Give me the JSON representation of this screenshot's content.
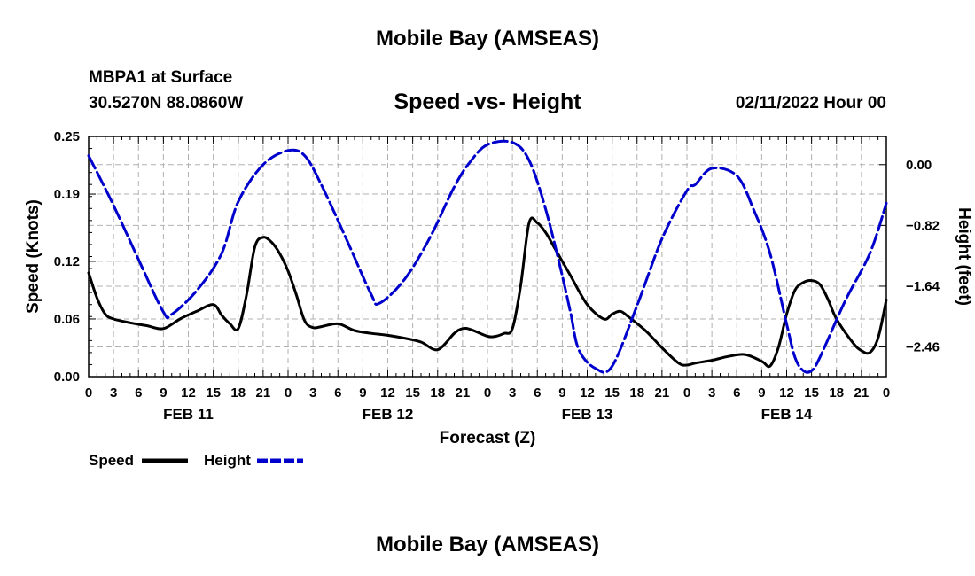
{
  "main_title": "Mobile Bay (AMSEAS)",
  "station_line1": "MBPA1 at Surface",
  "station_line2": "30.5270N  88.0860W",
  "chart_title": "Speed -vs- Height",
  "datetime": "02/11/2022 Hour 00",
  "repeat_title": "Mobile Bay (AMSEAS)",
  "legend": {
    "speed": "Speed",
    "height": "Height"
  },
  "colors": {
    "speed": "#000000",
    "height": "#0000cc",
    "grid": "#b0b0b0"
  },
  "chart_data": {
    "type": "line",
    "xlabel": "Forecast (Z)",
    "ylabel": "Speed (Knots)",
    "y2label": "Height (feet)",
    "xlim": [
      0,
      96
    ],
    "ylim": [
      0,
      0.25
    ],
    "y2lim": [
      -2.86,
      0.38
    ],
    "x_ticks": [
      0,
      3,
      6,
      9,
      12,
      15,
      18,
      21,
      24,
      27,
      30,
      33,
      36,
      39,
      42,
      45,
      48,
      51,
      54,
      57,
      60,
      63,
      66,
      69,
      72,
      75,
      78,
      81,
      84,
      87,
      90,
      93,
      96
    ],
    "x_tick_labels": [
      "0",
      "3",
      "6",
      "9",
      "12",
      "15",
      "18",
      "21",
      "0",
      "3",
      "6",
      "9",
      "12",
      "15",
      "18",
      "21",
      "0",
      "3",
      "6",
      "9",
      "12",
      "15",
      "18",
      "21",
      "0",
      "3",
      "6",
      "9",
      "12",
      "15",
      "18",
      "21",
      "0"
    ],
    "day_labels": [
      {
        "x": 12,
        "label": "FEB 11"
      },
      {
        "x": 36,
        "label": "FEB 12"
      },
      {
        "x": 60,
        "label": "FEB 13"
      },
      {
        "x": 84,
        "label": "FEB 14"
      }
    ],
    "y_ticks": [
      0.0,
      0.06,
      0.12,
      0.19,
      0.25
    ],
    "y_tick_labels": [
      "0.00",
      "0.06",
      "0.12",
      "0.19",
      "0.25"
    ],
    "y2_ticks": [
      0.0,
      -0.82,
      -1.64,
      -2.46
    ],
    "y2_tick_labels": [
      "0.00",
      "−0.82",
      "−1.64",
      "−2.46"
    ],
    "grid": true,
    "series": [
      {
        "name": "Speed",
        "axis": "left",
        "style": "solid",
        "x": [
          0,
          1,
          2,
          3,
          5,
          7,
          9,
          11,
          13,
          15,
          16,
          17,
          18,
          19,
          20,
          21,
          22,
          23,
          24,
          25,
          26,
          27,
          28,
          30,
          32,
          34,
          36,
          38,
          40,
          42,
          44,
          45,
          46,
          48,
          49,
          50,
          51,
          52,
          53,
          54,
          55,
          56,
          57,
          58,
          60,
          62,
          63,
          64,
          65,
          67,
          69,
          71,
          72,
          73,
          75,
          77,
          79,
          81,
          82,
          83,
          84,
          85,
          86,
          87,
          88,
          89,
          90,
          92,
          93,
          94,
          95,
          96
        ],
        "values": [
          0.108,
          0.082,
          0.065,
          0.06,
          0.056,
          0.053,
          0.05,
          0.06,
          0.068,
          0.075,
          0.064,
          0.055,
          0.05,
          0.085,
          0.135,
          0.145,
          0.14,
          0.128,
          0.11,
          0.085,
          0.058,
          0.051,
          0.052,
          0.055,
          0.048,
          0.045,
          0.043,
          0.04,
          0.036,
          0.028,
          0.045,
          0.05,
          0.049,
          0.042,
          0.042,
          0.045,
          0.05,
          0.095,
          0.16,
          0.16,
          0.15,
          0.135,
          0.12,
          0.105,
          0.075,
          0.06,
          0.065,
          0.068,
          0.062,
          0.048,
          0.03,
          0.014,
          0.012,
          0.014,
          0.017,
          0.021,
          0.023,
          0.016,
          0.011,
          0.03,
          0.065,
          0.09,
          0.098,
          0.1,
          0.096,
          0.08,
          0.06,
          0.035,
          0.027,
          0.025,
          0.04,
          0.08
        ]
      },
      {
        "name": "Height",
        "axis": "right",
        "style": "dashed",
        "x": [
          0,
          3,
          6,
          9,
          10,
          13,
          16,
          18,
          21,
          24,
          26,
          28,
          31,
          34,
          35,
          38,
          41,
          44,
          46,
          48,
          51,
          53,
          55,
          57,
          58,
          59,
          61,
          63,
          66,
          69,
          72,
          73,
          75,
          78,
          80,
          82,
          84,
          85,
          86,
          87,
          88,
          91,
          94,
          96
        ],
        "values": [
          0.12,
          -0.55,
          -1.28,
          -1.99,
          -2.02,
          -1.7,
          -1.2,
          -0.5,
          0.0,
          0.19,
          0.12,
          -0.27,
          -1.0,
          -1.75,
          -1.87,
          -1.55,
          -1.0,
          -0.3,
          0.05,
          0.27,
          0.3,
          0.06,
          -0.6,
          -1.5,
          -2.0,
          -2.5,
          -2.75,
          -2.72,
          -1.9,
          -1.0,
          -0.35,
          -0.27,
          -0.05,
          -0.15,
          -0.6,
          -1.2,
          -2.15,
          -2.6,
          -2.78,
          -2.78,
          -2.6,
          -1.85,
          -1.2,
          -0.52
        ]
      }
    ]
  }
}
